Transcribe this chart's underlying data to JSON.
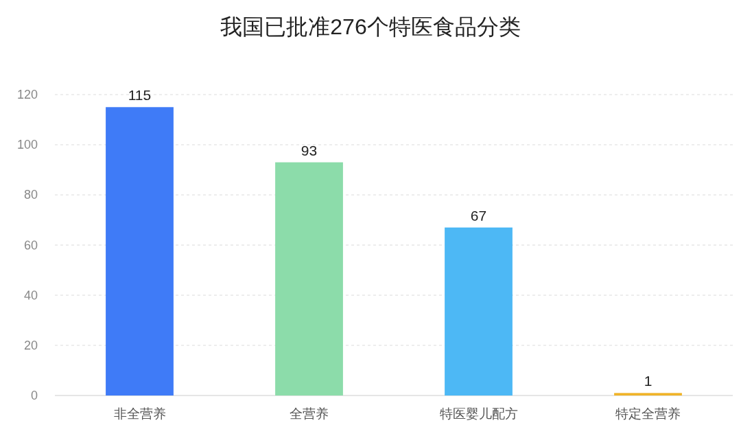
{
  "chart_data": {
    "type": "bar",
    "title": "我国已批准276个特医食品分类",
    "categories": [
      "非全营养",
      "全营养",
      "特医婴儿配方",
      "特定全营养"
    ],
    "values": [
      115,
      93,
      67,
      1
    ],
    "colors": [
      "#3f7bf7",
      "#8cdcaa",
      "#4db8f5",
      "#f0b429"
    ],
    "ylim": [
      0,
      120
    ],
    "yticks": [
      0,
      20,
      40,
      60,
      80,
      100,
      120
    ],
    "grid": "y",
    "data_labels": true
  }
}
